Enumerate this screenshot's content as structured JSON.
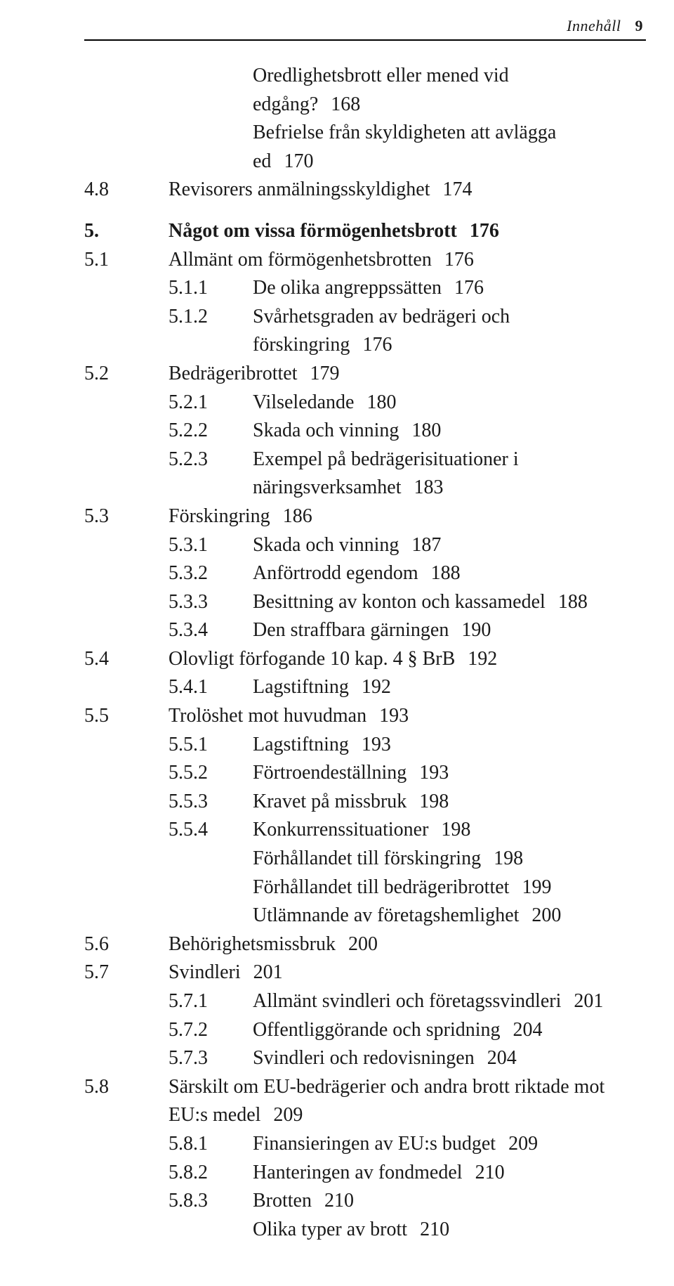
{
  "runningHead": {
    "label": "Innehåll",
    "pageNumber": "9"
  },
  "typography": {
    "body_fontsize_pt": 21,
    "head_fontsize_pt": 16,
    "text_color": "#1a1a1a",
    "background_color": "#ffffff",
    "rule_color": "#000000"
  },
  "entries": [
    {
      "level": 3,
      "num": "",
      "text": "Oredlighetsbrott eller mened vid",
      "page": "",
      "noNum": true
    },
    {
      "level": 3,
      "num": "",
      "text": "edgång?",
      "page": "168",
      "noNum": true,
      "continuation": true
    },
    {
      "level": 3,
      "num": "",
      "text": "Befrielse från skyldigheten att avlägga",
      "page": "",
      "noNum": true
    },
    {
      "level": 3,
      "num": "",
      "text": "ed",
      "page": "170",
      "noNum": true,
      "continuation": true
    },
    {
      "level": 2,
      "num": "4.8",
      "text": "Revisorers anmälningsskyldighet",
      "page": "174"
    },
    {
      "gap": true
    },
    {
      "level": 1,
      "num": "5.",
      "text": "Något om vissa förmögenhetsbrott",
      "page": "176",
      "bold": true
    },
    {
      "level": 2,
      "num": "5.1",
      "text": "Allmänt om förmögenhetsbrotten",
      "page": "176"
    },
    {
      "level": 3,
      "num": "5.1.1",
      "text": "De olika angreppssätten",
      "page": "176"
    },
    {
      "level": 3,
      "num": "5.1.2",
      "text": "Svårhetsgraden av bedrägeri och",
      "page": ""
    },
    {
      "level": 3,
      "num": "",
      "text": "förskingring",
      "page": "176",
      "noNum": true,
      "continuation": true
    },
    {
      "level": 2,
      "num": "5.2",
      "text": "Bedrägeribrottet",
      "page": "179"
    },
    {
      "level": 3,
      "num": "5.2.1",
      "text": "Vilseledande",
      "page": "180"
    },
    {
      "level": 3,
      "num": "5.2.2",
      "text": "Skada och vinning",
      "page": "180"
    },
    {
      "level": 3,
      "num": "5.2.3",
      "text": "Exempel på bedrägerisituationer i",
      "page": ""
    },
    {
      "level": 3,
      "num": "",
      "text": "näringsverksamhet",
      "page": "183",
      "noNum": true,
      "continuation": true
    },
    {
      "level": 2,
      "num": "5.3",
      "text": "Förskingring",
      "page": "186"
    },
    {
      "level": 3,
      "num": "5.3.1",
      "text": "Skada och vinning",
      "page": "187"
    },
    {
      "level": 3,
      "num": "5.3.2",
      "text": "Anförtrodd egendom",
      "page": "188"
    },
    {
      "level": 3,
      "num": "5.3.3",
      "text": "Besittning av konton och kassamedel",
      "page": "188"
    },
    {
      "level": 3,
      "num": "5.3.4",
      "text": "Den straffbara gärningen",
      "page": "190"
    },
    {
      "level": 2,
      "num": "5.4",
      "text": "Olovligt förfogande 10 kap. 4 § BrB",
      "page": "192"
    },
    {
      "level": 3,
      "num": "5.4.1",
      "text": "Lagstiftning",
      "page": "192"
    },
    {
      "level": 2,
      "num": "5.5",
      "text": "Trolöshet mot huvudman",
      "page": "193"
    },
    {
      "level": 3,
      "num": "5.5.1",
      "text": "Lagstiftning",
      "page": "193"
    },
    {
      "level": 3,
      "num": "5.5.2",
      "text": "Förtroendeställning",
      "page": "193"
    },
    {
      "level": 3,
      "num": "5.5.3",
      "text": "Kravet på missbruk",
      "page": "198"
    },
    {
      "level": 3,
      "num": "5.5.4",
      "text": "Konkurrenssituationer",
      "page": "198"
    },
    {
      "level": 3,
      "num": "",
      "text": "Förhållandet till förskingring",
      "page": "198",
      "noNum": true
    },
    {
      "level": 3,
      "num": "",
      "text": "Förhållandet till bedrägeribrottet",
      "page": "199",
      "noNum": true
    },
    {
      "level": 3,
      "num": "",
      "text": "Utlämnande av företagshemlighet",
      "page": "200",
      "noNum": true
    },
    {
      "level": 2,
      "num": "5.6",
      "text": "Behörighetsmissbruk",
      "page": "200"
    },
    {
      "level": 2,
      "num": "5.7",
      "text": "Svindleri",
      "page": "201"
    },
    {
      "level": 3,
      "num": "5.7.1",
      "text": "Allmänt svindleri och företagssvindleri",
      "page": "201"
    },
    {
      "level": 3,
      "num": "5.7.2",
      "text": "Offentliggörande och spridning",
      "page": "204"
    },
    {
      "level": 3,
      "num": "5.7.3",
      "text": "Svindleri och redovisningen",
      "page": "204"
    },
    {
      "level": 2,
      "num": "5.8",
      "text": "Särskilt om EU-bedrägerier och andra brott riktade mot",
      "page": ""
    },
    {
      "level": 2,
      "num": "",
      "text": "EU:s medel",
      "page": "209",
      "noNum": true,
      "continuation": true
    },
    {
      "level": 3,
      "num": "5.8.1",
      "text": "Finansieringen av EU:s budget",
      "page": "209"
    },
    {
      "level": 3,
      "num": "5.8.2",
      "text": "Hanteringen av fondmedel",
      "page": "210"
    },
    {
      "level": 3,
      "num": "5.8.3",
      "text": "Brotten",
      "page": "210"
    },
    {
      "level": 3,
      "num": "",
      "text": "Olika typer av brott",
      "page": "210",
      "noNum": true
    }
  ]
}
